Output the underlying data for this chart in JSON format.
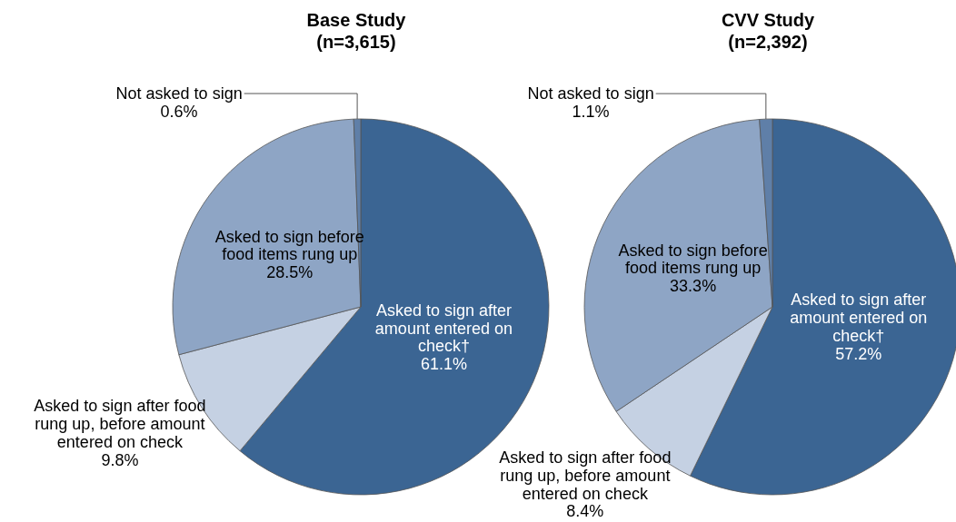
{
  "chart_data": [
    {
      "type": "pie",
      "title": "Base Study",
      "subtitle": "(n=3,615)",
      "categories": [
        "Asked to sign after amount entered on check†",
        "Asked to sign after food rung up, before amount entered on check",
        "Asked to sign before food items rung up",
        "Not asked to sign"
      ],
      "values": [
        61.1,
        9.8,
        28.5,
        0.6
      ],
      "value_labels": [
        "61.1%",
        "9.8%",
        "28.5%",
        "0.6%"
      ],
      "colors": [
        "#3b6593",
        "#c5d1e3",
        "#8ea5c5",
        "#5f7fa8"
      ]
    },
    {
      "type": "pie",
      "title": "CVV Study",
      "subtitle": "(n=2,392)",
      "categories": [
        "Asked to sign after amount entered on check†",
        "Asked to sign after food rung up, before amount entered on check",
        "Asked to sign before food items rung up",
        "Not asked to sign"
      ],
      "values": [
        57.2,
        8.4,
        33.3,
        1.1
      ],
      "value_labels": [
        "57.2%",
        "8.4%",
        "33.3%",
        "1.1%"
      ],
      "colors": [
        "#3b6593",
        "#c5d1e3",
        "#8ea5c5",
        "#5f7fa8"
      ]
    }
  ]
}
